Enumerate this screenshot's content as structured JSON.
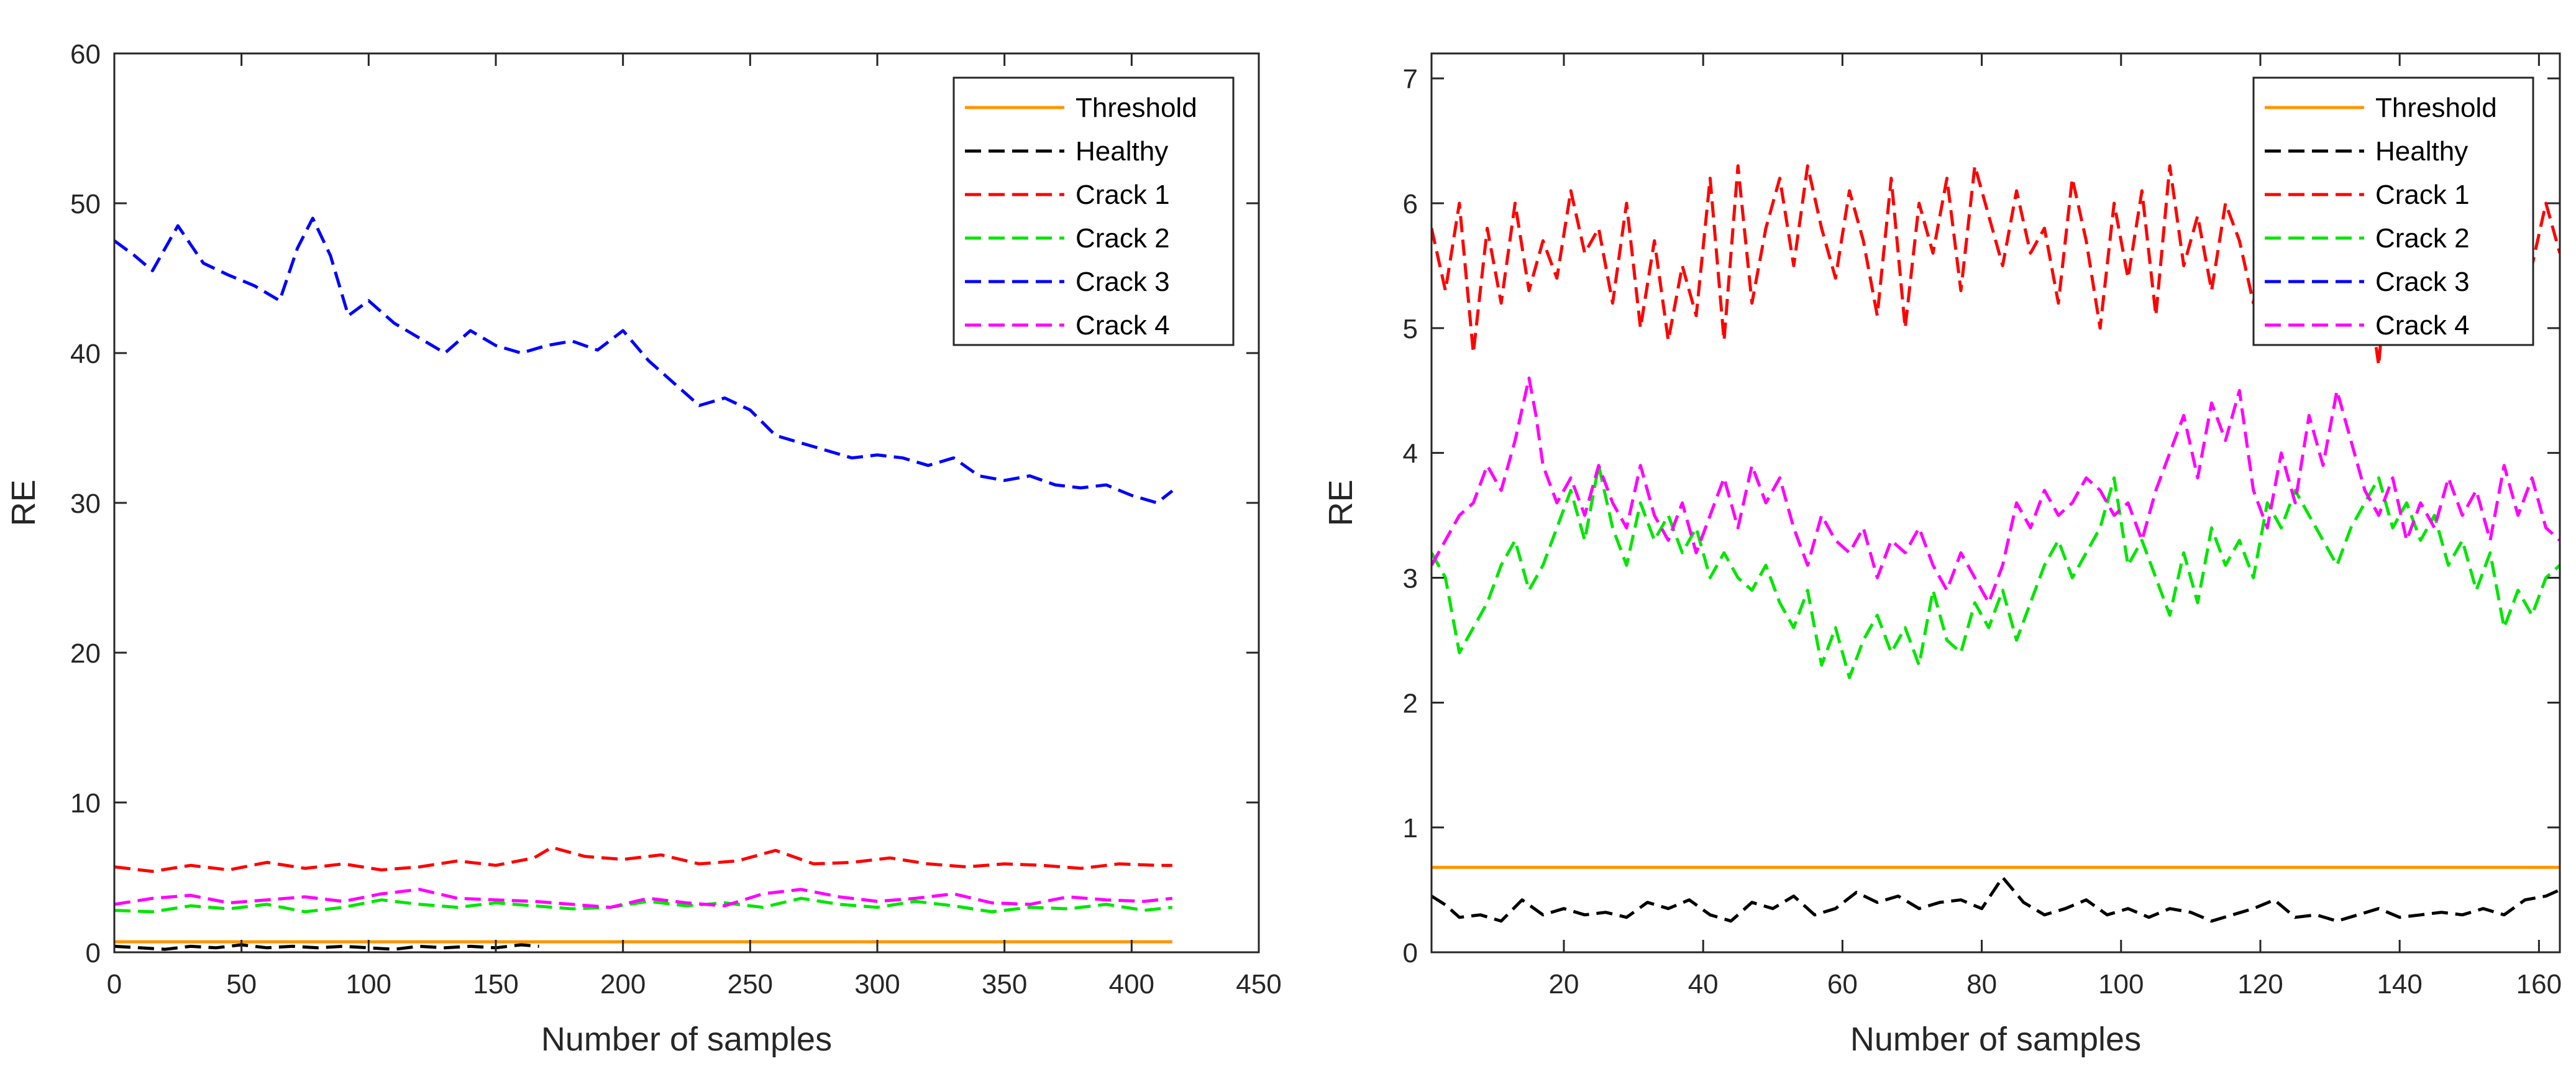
{
  "chart_data": [
    {
      "type": "line",
      "xlabel": "Number of samples",
      "ylabel": "RE",
      "xlim": [
        0,
        450
      ],
      "ylim": [
        0,
        60
      ],
      "xticks": [
        0,
        50,
        100,
        150,
        200,
        250,
        300,
        350,
        400,
        450
      ],
      "yticks": [
        0,
        10,
        20,
        30,
        40,
        50,
        60
      ],
      "grid": false,
      "legend_position": "top-right",
      "threshold": {
        "name": "Threshold",
        "value": 0.7,
        "x": [
          0,
          416
        ],
        "color": "#ff9500"
      },
      "series": [
        {
          "name": "Healthy",
          "color": "#000000",
          "x": [
            0,
            10,
            20,
            30,
            40,
            50,
            60,
            70,
            80,
            90,
            100,
            110,
            120,
            130,
            140,
            150,
            160,
            167
          ],
          "values": [
            0.4,
            0.3,
            0.2,
            0.4,
            0.3,
            0.5,
            0.3,
            0.4,
            0.3,
            0.4,
            0.3,
            0.2,
            0.4,
            0.3,
            0.4,
            0.3,
            0.5,
            0.4
          ]
        },
        {
          "name": "Crack 1",
          "color": "#ff0000",
          "x": [
            0,
            15,
            30,
            45,
            60,
            75,
            90,
            105,
            120,
            135,
            150,
            165,
            172,
            185,
            200,
            215,
            230,
            245,
            260,
            275,
            290,
            305,
            320,
            335,
            350,
            365,
            380,
            395,
            410,
            416
          ],
          "values": [
            5.7,
            5.4,
            5.8,
            5.5,
            6.0,
            5.6,
            5.9,
            5.5,
            5.7,
            6.1,
            5.8,
            6.3,
            7.0,
            6.4,
            6.2,
            6.5,
            5.9,
            6.1,
            6.8,
            5.9,
            6.0,
            6.3,
            5.9,
            5.7,
            5.9,
            5.8,
            5.6,
            5.9,
            5.8,
            5.8
          ]
        },
        {
          "name": "Crack 2",
          "color": "#00e600",
          "x": [
            0,
            15,
            30,
            45,
            60,
            75,
            90,
            105,
            120,
            135,
            150,
            165,
            180,
            195,
            210,
            225,
            240,
            255,
            270,
            285,
            300,
            315,
            330,
            345,
            360,
            375,
            390,
            405,
            416
          ],
          "values": [
            2.8,
            2.7,
            3.1,
            2.9,
            3.2,
            2.7,
            3.0,
            3.5,
            3.2,
            3.0,
            3.3,
            3.1,
            2.9,
            3.0,
            3.4,
            3.1,
            3.3,
            3.0,
            3.6,
            3.2,
            3.0,
            3.4,
            3.1,
            2.7,
            3.0,
            2.9,
            3.2,
            2.8,
            3.0
          ]
        },
        {
          "name": "Crack 3",
          "color": "#0000ff",
          "x": [
            0,
            8,
            15,
            25,
            35,
            45,
            55,
            65,
            72,
            78,
            85,
            92,
            100,
            110,
            120,
            130,
            140,
            150,
            160,
            170,
            180,
            190,
            200,
            210,
            220,
            230,
            240,
            250,
            260,
            270,
            280,
            290,
            300,
            310,
            320,
            330,
            340,
            350,
            360,
            370,
            380,
            390,
            400,
            410,
            416
          ],
          "values": [
            47.5,
            46.5,
            45.5,
            48.5,
            46.0,
            45.2,
            44.5,
            43.5,
            47.0,
            49.0,
            46.5,
            42.5,
            43.5,
            42.0,
            41.0,
            40.0,
            41.5,
            40.5,
            40.0,
            40.5,
            40.8,
            40.2,
            41.5,
            39.5,
            38.0,
            36.5,
            37.0,
            36.2,
            34.5,
            34.0,
            33.5,
            33.0,
            33.2,
            33.0,
            32.5,
            33.0,
            31.8,
            31.5,
            31.8,
            31.2,
            31.0,
            31.2,
            30.5,
            30.0,
            30.8
          ]
        },
        {
          "name": "Crack 4",
          "color": "#ff00ff",
          "x": [
            0,
            15,
            30,
            45,
            60,
            75,
            90,
            105,
            120,
            135,
            150,
            165,
            180,
            195,
            210,
            225,
            240,
            255,
            270,
            285,
            300,
            315,
            330,
            345,
            360,
            375,
            390,
            405,
            416
          ],
          "values": [
            3.2,
            3.6,
            3.8,
            3.3,
            3.5,
            3.7,
            3.4,
            3.9,
            4.2,
            3.6,
            3.5,
            3.4,
            3.2,
            3.0,
            3.6,
            3.3,
            3.1,
            3.9,
            4.2,
            3.7,
            3.4,
            3.6,
            3.9,
            3.3,
            3.2,
            3.7,
            3.5,
            3.4,
            3.6
          ]
        }
      ]
    },
    {
      "type": "line",
      "xlabel": "Number of samples",
      "ylabel": "RE",
      "xlim": [
        1,
        163
      ],
      "ylim": [
        0,
        7.2
      ],
      "xticks": [
        20,
        40,
        60,
        80,
        100,
        120,
        140,
        160
      ],
      "yticks": [
        0,
        1,
        2,
        3,
        4,
        5,
        6,
        7
      ],
      "grid": false,
      "legend_position": "top-right",
      "threshold": {
        "name": "Threshold",
        "value": 0.68,
        "x": [
          1,
          163
        ],
        "color": "#ff9500"
      },
      "series": [
        {
          "name": "Healthy",
          "color": "#000000",
          "x": [
            1,
            3,
            5,
            8,
            11,
            14,
            17,
            20,
            23,
            26,
            29,
            32,
            35,
            38,
            41,
            44,
            47,
            50,
            53,
            56,
            59,
            62,
            65,
            68,
            71,
            74,
            77,
            80,
            83,
            86,
            89,
            92,
            95,
            98,
            101,
            104,
            107,
            110,
            113,
            116,
            119,
            122,
            125,
            128,
            131,
            134,
            137,
            140,
            143,
            146,
            149,
            152,
            155,
            158,
            161,
            163
          ],
          "values": [
            0.45,
            0.38,
            0.28,
            0.3,
            0.25,
            0.42,
            0.3,
            0.35,
            0.3,
            0.32,
            0.28,
            0.4,
            0.35,
            0.42,
            0.3,
            0.25,
            0.4,
            0.35,
            0.45,
            0.3,
            0.35,
            0.48,
            0.4,
            0.45,
            0.35,
            0.4,
            0.42,
            0.35,
            0.6,
            0.4,
            0.3,
            0.35,
            0.42,
            0.3,
            0.35,
            0.28,
            0.35,
            0.32,
            0.25,
            0.3,
            0.35,
            0.42,
            0.28,
            0.3,
            0.25,
            0.3,
            0.35,
            0.28,
            0.3,
            0.32,
            0.3,
            0.35,
            0.3,
            0.42,
            0.45,
            0.5
          ]
        },
        {
          "name": "Crack 1",
          "color": "#ff0000",
          "x": [
            1,
            3,
            5,
            7,
            9,
            11,
            13,
            15,
            17,
            19,
            21,
            23,
            25,
            27,
            29,
            31,
            33,
            35,
            37,
            39,
            41,
            43,
            45,
            47,
            49,
            51,
            53,
            55,
            57,
            59,
            61,
            63,
            65,
            67,
            69,
            71,
            73,
            75,
            77,
            79,
            81,
            83,
            85,
            87,
            89,
            91,
            93,
            95,
            97,
            99,
            101,
            103,
            105,
            107,
            109,
            111,
            113,
            115,
            117,
            119,
            121,
            123,
            125,
            127,
            129,
            131,
            133,
            135,
            137,
            139,
            141,
            143,
            145,
            147,
            149,
            151,
            153,
            155,
            157,
            159,
            161,
            163
          ],
          "values": [
            5.8,
            5.3,
            6.0,
            4.8,
            5.8,
            5.2,
            6.0,
            5.3,
            5.7,
            5.4,
            6.1,
            5.6,
            5.8,
            5.2,
            6.0,
            5.0,
            5.7,
            4.9,
            5.5,
            5.1,
            6.2,
            4.9,
            6.3,
            5.2,
            5.8,
            6.2,
            5.5,
            6.3,
            5.8,
            5.4,
            6.1,
            5.7,
            5.1,
            6.2,
            5.0,
            6.0,
            5.6,
            6.2,
            5.3,
            6.3,
            5.9,
            5.5,
            6.1,
            5.6,
            5.8,
            5.2,
            6.2,
            5.7,
            5.0,
            6.0,
            5.4,
            6.1,
            5.1,
            6.3,
            5.5,
            5.9,
            5.3,
            6.0,
            5.7,
            5.2,
            5.9,
            5.4,
            6.1,
            5.6,
            5.7,
            5.1,
            6.0,
            5.5,
            4.7,
            6.1,
            5.4,
            5.8,
            5.3,
            6.0,
            5.7,
            5.3,
            5.9,
            5.4,
            5.8,
            5.5,
            6.0,
            5.6
          ]
        },
        {
          "name": "Crack 2",
          "color": "#00e600",
          "x": [
            1,
            3,
            5,
            7,
            9,
            11,
            13,
            15,
            17,
            19,
            21,
            23,
            25,
            27,
            29,
            31,
            33,
            35,
            37,
            39,
            41,
            43,
            45,
            47,
            49,
            51,
            53,
            55,
            57,
            59,
            61,
            63,
            65,
            67,
            69,
            71,
            73,
            75,
            77,
            79,
            81,
            83,
            85,
            87,
            89,
            91,
            93,
            95,
            97,
            99,
            101,
            103,
            105,
            107,
            109,
            111,
            113,
            115,
            117,
            119,
            121,
            123,
            125,
            127,
            129,
            131,
            133,
            135,
            137,
            139,
            141,
            143,
            145,
            147,
            149,
            151,
            153,
            155,
            157,
            159,
            161,
            163
          ],
          "values": [
            3.2,
            3.0,
            2.4,
            2.6,
            2.8,
            3.1,
            3.3,
            2.9,
            3.1,
            3.4,
            3.7,
            3.3,
            3.9,
            3.4,
            3.1,
            3.6,
            3.3,
            3.5,
            3.2,
            3.4,
            3.0,
            3.2,
            3.0,
            2.9,
            3.1,
            2.8,
            2.6,
            2.9,
            2.3,
            2.6,
            2.2,
            2.5,
            2.7,
            2.4,
            2.6,
            2.3,
            2.9,
            2.5,
            2.4,
            2.8,
            2.6,
            2.9,
            2.5,
            2.8,
            3.1,
            3.3,
            3.0,
            3.2,
            3.4,
            3.8,
            3.1,
            3.3,
            3.0,
            2.7,
            3.2,
            2.8,
            3.4,
            3.1,
            3.3,
            3.0,
            3.6,
            3.4,
            3.7,
            3.5,
            3.3,
            3.1,
            3.4,
            3.6,
            3.8,
            3.4,
            3.6,
            3.3,
            3.5,
            3.1,
            3.3,
            2.9,
            3.2,
            2.6,
            2.9,
            2.7,
            3.0,
            3.1
          ]
        },
        {
          "name": "Crack 4",
          "color": "#ff00ff",
          "x": [
            1,
            3,
            5,
            7,
            9,
            11,
            13,
            15,
            16,
            17,
            19,
            21,
            23,
            25,
            27,
            29,
            31,
            33,
            35,
            37,
            39,
            41,
            43,
            45,
            47,
            49,
            51,
            53,
            55,
            57,
            59,
            61,
            63,
            65,
            67,
            69,
            71,
            73,
            75,
            77,
            79,
            81,
            83,
            85,
            87,
            89,
            91,
            93,
            95,
            97,
            99,
            101,
            103,
            105,
            107,
            109,
            111,
            113,
            115,
            117,
            119,
            121,
            123,
            125,
            127,
            129,
            131,
            133,
            135,
            137,
            139,
            141,
            143,
            145,
            147,
            149,
            151,
            153,
            155,
            157,
            159,
            161,
            163
          ],
          "values": [
            3.1,
            3.3,
            3.5,
            3.6,
            3.9,
            3.7,
            4.1,
            4.6,
            4.3,
            3.9,
            3.6,
            3.8,
            3.5,
            3.9,
            3.6,
            3.4,
            3.9,
            3.5,
            3.3,
            3.6,
            3.2,
            3.5,
            3.8,
            3.4,
            3.9,
            3.6,
            3.8,
            3.4,
            3.1,
            3.5,
            3.3,
            3.2,
            3.4,
            3.0,
            3.3,
            3.2,
            3.4,
            3.1,
            2.9,
            3.2,
            3.0,
            2.8,
            3.1,
            3.6,
            3.4,
            3.7,
            3.5,
            3.6,
            3.8,
            3.7,
            3.5,
            3.6,
            3.3,
            3.7,
            4.0,
            4.3,
            3.8,
            4.4,
            4.1,
            4.5,
            3.7,
            3.4,
            4.0,
            3.6,
            4.3,
            3.9,
            4.5,
            4.1,
            3.7,
            3.5,
            3.8,
            3.3,
            3.6,
            3.4,
            3.8,
            3.5,
            3.7,
            3.3,
            3.9,
            3.5,
            3.8,
            3.4,
            3.3
          ]
        },
        {
          "name": "Crack 3",
          "color": "#0000ff",
          "x": [],
          "values": []
        }
      ]
    }
  ]
}
